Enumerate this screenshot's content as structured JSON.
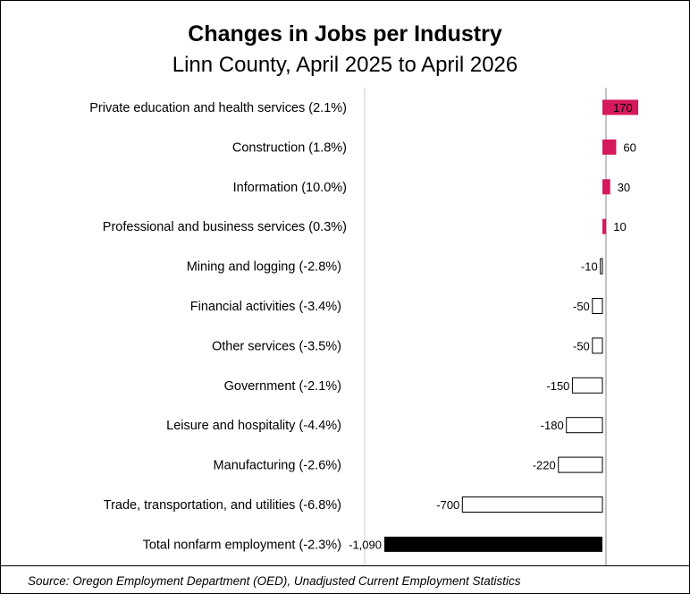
{
  "chart_data": {
    "type": "bar",
    "orientation": "horizontal",
    "title": "Changes in Jobs per Industry",
    "subtitle": "Linn County, April 2025 to April 2026",
    "categories": [
      "Private education and health services (2.1%)",
      "Construction (1.8%)",
      "Information (10.0%)",
      "Professional and business services (0.3%)",
      "Mining and logging (-2.8%)",
      "Financial activities (-3.4%)",
      "Other services (-3.5%)",
      "Government (-2.1%)",
      "Leisure and hospitality (-4.4%)",
      "Manufacturing (-2.6%)",
      "Trade, transportation, and utilities (-6.8%)",
      "Total nonfarm employment (-2.3%)"
    ],
    "values": [
      170,
      60,
      30,
      10,
      -10,
      -50,
      -50,
      -150,
      -180,
      -220,
      -700,
      -1090
    ],
    "value_labels": [
      "170",
      "60",
      "30",
      "10",
      "-10",
      "-50",
      "-50",
      "-150",
      "-180",
      "-220",
      "-700",
      "-1,090"
    ],
    "xlim": [
      -1090,
      170
    ],
    "colors": {
      "positive": "#d6185c",
      "negative_fill": "#ffffff",
      "negative_stroke": "#000000",
      "total": "#000000",
      "zero_line": "#888888",
      "divider": "#cccccc"
    },
    "source": "Source: Oregon Employment Department (OED), Unadjusted Current Employment Statistics"
  }
}
